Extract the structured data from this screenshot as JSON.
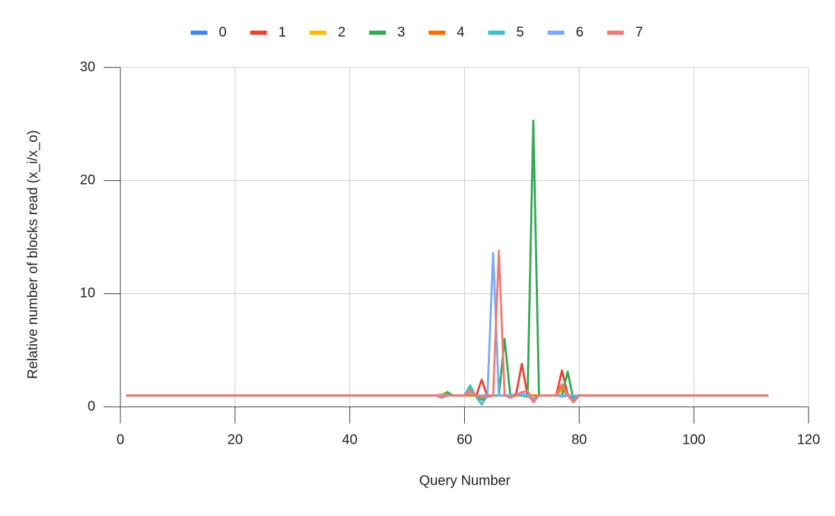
{
  "chart_data": {
    "type": "line",
    "xlabel": "Query Number",
    "ylabel": "Relative number of blocks read (x_i/x_o)",
    "x": [
      1,
      2,
      3,
      4,
      5,
      6,
      7,
      8,
      9,
      10,
      11,
      12,
      13,
      14,
      15,
      16,
      17,
      18,
      19,
      20,
      21,
      22,
      23,
      24,
      25,
      26,
      27,
      28,
      29,
      30,
      31,
      32,
      33,
      34,
      35,
      36,
      37,
      38,
      39,
      40,
      41,
      42,
      43,
      44,
      45,
      46,
      47,
      48,
      49,
      50,
      51,
      52,
      53,
      54,
      55,
      56,
      57,
      58,
      59,
      60,
      61,
      62,
      63,
      64,
      65,
      66,
      67,
      68,
      69,
      70,
      71,
      72,
      73,
      74,
      75,
      76,
      77,
      78,
      79,
      80,
      81,
      82,
      83,
      84,
      85,
      86,
      87,
      88,
      89,
      90,
      91,
      92,
      93,
      94,
      95,
      96,
      97,
      98,
      99,
      100,
      101,
      102,
      103,
      104,
      105,
      106,
      107,
      108,
      109,
      110,
      111,
      112,
      113
    ],
    "xlim": [
      0,
      120
    ],
    "xticks": [
      0,
      20,
      40,
      60,
      80,
      100,
      120
    ],
    "ylim": [
      0,
      30
    ],
    "yticks": [
      0,
      10,
      20,
      30
    ],
    "grid": true,
    "legend": "top",
    "series": [
      {
        "name": "0",
        "color": "#4285f4",
        "values": [
          1,
          1,
          1,
          1,
          1,
          1,
          1,
          1,
          1,
          1,
          1,
          1,
          1,
          1,
          1,
          1,
          1,
          1,
          1,
          1,
          1,
          1,
          1,
          1,
          1,
          1,
          1,
          1,
          1,
          1,
          1,
          1,
          1,
          1,
          1,
          1,
          1,
          1,
          1,
          1,
          1,
          1,
          1,
          1,
          1,
          1,
          1,
          1,
          1,
          1,
          1,
          1,
          1,
          1,
          1,
          0.9,
          1.1,
          1,
          1,
          1,
          1.2,
          1,
          0.8,
          1,
          1,
          1,
          1,
          1,
          1,
          1,
          1,
          0.7,
          1,
          1,
          1,
          1,
          1,
          1,
          0.8,
          1,
          1,
          1,
          1,
          1,
          1,
          1,
          1,
          1,
          1,
          1,
          1,
          1,
          1,
          1,
          1,
          1,
          1,
          1,
          1,
          1,
          1,
          1,
          1,
          1,
          1,
          1,
          1,
          1,
          1,
          1,
          1,
          1,
          1
        ]
      },
      {
        "name": "1",
        "color": "#ea4335",
        "values": [
          1,
          1,
          1,
          1,
          1,
          1,
          1,
          1,
          1,
          1,
          1,
          1,
          1,
          1,
          1,
          1,
          1,
          1,
          1,
          1,
          1,
          1,
          1,
          1,
          1,
          1,
          1,
          1,
          1,
          1,
          1,
          1,
          1,
          1,
          1,
          1,
          1,
          1,
          1,
          1,
          1,
          1,
          1,
          1,
          1,
          1,
          1,
          1,
          1,
          1,
          1,
          1,
          1,
          1,
          1,
          0.9,
          1.2,
          1,
          1,
          1,
          1.4,
          0.9,
          2.4,
          0.9,
          1,
          1,
          1,
          1,
          1.1,
          3.8,
          1,
          0.6,
          1,
          1,
          1,
          1,
          3.2,
          1.1,
          0.5,
          1,
          1,
          1,
          1,
          1,
          1,
          1,
          1,
          1,
          1,
          1,
          1,
          1,
          1,
          1,
          1,
          1,
          1,
          1,
          1,
          1,
          1,
          1,
          1,
          1,
          1,
          1,
          1,
          1,
          1,
          1,
          1,
          1,
          1
        ]
      },
      {
        "name": "2",
        "color": "#fbbc04",
        "values": [
          1,
          1,
          1,
          1,
          1,
          1,
          1,
          1,
          1,
          1,
          1,
          1,
          1,
          1,
          1,
          1,
          1,
          1,
          1,
          1,
          1,
          1,
          1,
          1,
          1,
          1,
          1,
          1,
          1,
          1,
          1,
          1,
          1,
          1,
          1,
          1,
          1,
          1,
          1,
          1,
          1,
          1,
          1,
          1,
          1,
          1,
          1,
          1,
          1,
          1,
          1,
          1,
          1,
          1,
          1,
          1.1,
          1.3,
          1,
          1,
          1,
          1.1,
          1,
          1,
          1,
          1,
          1,
          1,
          1,
          1,
          1,
          1,
          1,
          1,
          1,
          1,
          1,
          1.5,
          1,
          1,
          1,
          1,
          1,
          1,
          1,
          1,
          1,
          1,
          1,
          1,
          1,
          1,
          1,
          1,
          1,
          1,
          1,
          1,
          1,
          1,
          1,
          1,
          1,
          1,
          1,
          1,
          1,
          1,
          1,
          1,
          1,
          1,
          1,
          1
        ]
      },
      {
        "name": "3",
        "color": "#34a853",
        "values": [
          1,
          1,
          1,
          1,
          1,
          1,
          1,
          1,
          1,
          1,
          1,
          1,
          1,
          1,
          1,
          1,
          1,
          1,
          1,
          1,
          1,
          1,
          1,
          1,
          1,
          1,
          1,
          1,
          1,
          1,
          1,
          1,
          1,
          1,
          1,
          1,
          1,
          1,
          1,
          1,
          1,
          1,
          1,
          1,
          1,
          1,
          1,
          1,
          1,
          1,
          1,
          1,
          1,
          1,
          1,
          0.8,
          1.3,
          1,
          1,
          1,
          1.6,
          1,
          0.6,
          1,
          1,
          1,
          6,
          1,
          1,
          1,
          0.9,
          25.3,
          1,
          1,
          1,
          1,
          1,
          3.1,
          0.6,
          1,
          1,
          1,
          1,
          1,
          1,
          1,
          1,
          1,
          1,
          1,
          1,
          1,
          1,
          1,
          1,
          1,
          1,
          1,
          1,
          1,
          1,
          1,
          1,
          1,
          1,
          1,
          1,
          1,
          1,
          1,
          1,
          1,
          1
        ]
      },
      {
        "name": "4",
        "color": "#ff6d01",
        "values": [
          1,
          1,
          1,
          1,
          1,
          1,
          1,
          1,
          1,
          1,
          1,
          1,
          1,
          1,
          1,
          1,
          1,
          1,
          1,
          1,
          1,
          1,
          1,
          1,
          1,
          1,
          1,
          1,
          1,
          1,
          1,
          1,
          1,
          1,
          1,
          1,
          1,
          1,
          1,
          1,
          1,
          1,
          1,
          1,
          1,
          1,
          1,
          1,
          1,
          1,
          1,
          1,
          1,
          1,
          1,
          1,
          1.1,
          1,
          1,
          1,
          1,
          1,
          1,
          1,
          1,
          1,
          1,
          1,
          1,
          1,
          1,
          1,
          1,
          1,
          1,
          1,
          1.8,
          1,
          1,
          1,
          1,
          1,
          1,
          1,
          1,
          1,
          1,
          1,
          1,
          1,
          1,
          1,
          1,
          1,
          1,
          1,
          1,
          1,
          1,
          1,
          1,
          1,
          1,
          1,
          1,
          1,
          1,
          1,
          1,
          1,
          1,
          1,
          1
        ]
      },
      {
        "name": "5",
        "color": "#46bdc6",
        "values": [
          1,
          1,
          1,
          1,
          1,
          1,
          1,
          1,
          1,
          1,
          1,
          1,
          1,
          1,
          1,
          1,
          1,
          1,
          1,
          1,
          1,
          1,
          1,
          1,
          1,
          1,
          1,
          1,
          1,
          1,
          1,
          1,
          1,
          1,
          1,
          1,
          1,
          1,
          1,
          1,
          1,
          1,
          1,
          1,
          1,
          1,
          1,
          1,
          1,
          1,
          1,
          1,
          1,
          1,
          1,
          0.9,
          1.1,
          1,
          1,
          1,
          1.9,
          0.9,
          0.2,
          1,
          1,
          1,
          1,
          1,
          1,
          1,
          1,
          0.5,
          1,
          1,
          1,
          1,
          1,
          1,
          0.7,
          1,
          1,
          1,
          1,
          1,
          1,
          1,
          1,
          1,
          1,
          1,
          1,
          1,
          1,
          1,
          1,
          1,
          1,
          1,
          1,
          1,
          1,
          1,
          1,
          1,
          1,
          1,
          1,
          1,
          1,
          1,
          1,
          1,
          1
        ]
      },
      {
        "name": "6",
        "color": "#7baaf7",
        "values": [
          1,
          1,
          1,
          1,
          1,
          1,
          1,
          1,
          1,
          1,
          1,
          1,
          1,
          1,
          1,
          1,
          1,
          1,
          1,
          1,
          1,
          1,
          1,
          1,
          1,
          1,
          1,
          1,
          1,
          1,
          1,
          1,
          1,
          1,
          1,
          1,
          1,
          1,
          1,
          1,
          1,
          1,
          1,
          1,
          1,
          1,
          1,
          1,
          1,
          1,
          1,
          1,
          1,
          1,
          1,
          1,
          1,
          1,
          1,
          1,
          1.3,
          1,
          1,
          1,
          13.6,
          1,
          1,
          1,
          1,
          1.2,
          1,
          0.6,
          1,
          1,
          1,
          1,
          0.9,
          1,
          1,
          1,
          1,
          1,
          1,
          1,
          1,
          1,
          1,
          1,
          1,
          1,
          1,
          1,
          1,
          1,
          1,
          1,
          1,
          1,
          1,
          1,
          1,
          1,
          1,
          1,
          1,
          1,
          1,
          1,
          1,
          1,
          1,
          1,
          1
        ]
      },
      {
        "name": "7",
        "color": "#f07b72",
        "values": [
          1,
          1,
          1,
          1,
          1,
          1,
          1,
          1,
          1,
          1,
          1,
          1,
          1,
          1,
          1,
          1,
          1,
          1,
          1,
          1,
          1,
          1,
          1,
          1,
          1,
          1,
          1,
          1,
          1,
          1,
          1,
          1,
          1,
          1,
          1,
          1,
          1,
          1,
          1,
          1,
          1,
          1,
          1,
          1,
          1,
          1,
          1,
          1,
          1,
          1,
          1,
          1,
          1,
          1,
          1,
          0.8,
          1,
          1,
          1,
          1,
          1.5,
          1,
          0.8,
          1,
          1,
          13.8,
          1,
          0.8,
          1,
          1.3,
          1.4,
          0.4,
          1,
          1,
          1,
          1,
          2,
          1,
          0.4,
          1,
          1,
          1,
          1,
          1,
          1,
          1,
          1,
          1,
          1,
          1,
          1,
          1,
          1,
          1,
          1,
          1,
          1,
          1,
          1,
          1,
          1,
          1,
          1,
          1,
          1,
          1,
          1,
          1,
          1,
          1,
          1,
          1,
          1
        ]
      }
    ]
  }
}
